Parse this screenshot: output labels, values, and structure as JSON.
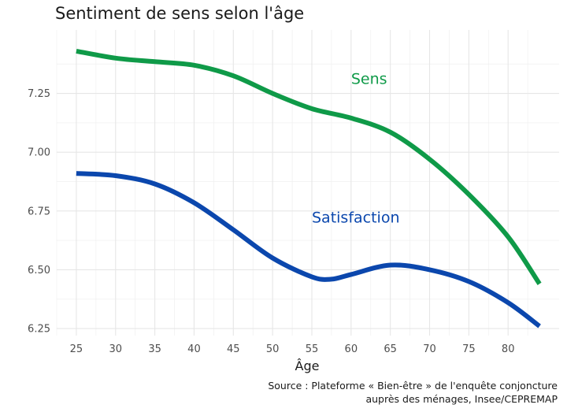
{
  "chart_data": {
    "type": "line",
    "title": "Sentiment de sens selon l'âge",
    "xlabel": "Âge",
    "ylabel": "",
    "xlim": [
      22.5,
      86.5
    ],
    "ylim": [
      6.22,
      7.52
    ],
    "x_ticks": [
      25,
      30,
      35,
      40,
      45,
      50,
      55,
      60,
      65,
      70,
      75,
      80
    ],
    "x_tick_labels": [
      "25",
      "30",
      "35",
      "40",
      "45",
      "50",
      "55",
      "60",
      "65",
      "70",
      "75",
      "80"
    ],
    "y_ticks": [
      6.25,
      6.5,
      6.75,
      7.0,
      7.25
    ],
    "y_tick_labels": [
      "6.25",
      "6.50",
      "6.75",
      "7.00",
      "7.25"
    ],
    "grid": true,
    "legend": "direct labels",
    "series": [
      {
        "name": "Sens",
        "color": "#0f9a48",
        "label_at": [
          60,
          7.29
        ],
        "x": [
          25,
          30,
          35,
          40,
          45,
          50,
          55,
          60,
          65,
          70,
          75,
          80,
          84
        ],
        "y": [
          7.43,
          7.4,
          7.385,
          7.37,
          7.325,
          7.25,
          7.185,
          7.145,
          7.085,
          6.97,
          6.82,
          6.64,
          6.44
        ]
      },
      {
        "name": "Satisfaction",
        "color": "#0b47ad",
        "label_at": [
          55,
          6.7
        ],
        "x": [
          25,
          30,
          35,
          40,
          45,
          50,
          55,
          57.5,
          60,
          65,
          70,
          75,
          80,
          84
        ],
        "y": [
          6.91,
          6.9,
          6.865,
          6.785,
          6.67,
          6.55,
          6.47,
          6.46,
          6.48,
          6.52,
          6.5,
          6.45,
          6.36,
          6.26
        ]
      }
    ]
  },
  "caption": {
    "line1": "Source : Plateforme « Bien-être » de l'enquête conjoncture",
    "line2": "auprès des ménages, Insee/CEPREMAP"
  }
}
